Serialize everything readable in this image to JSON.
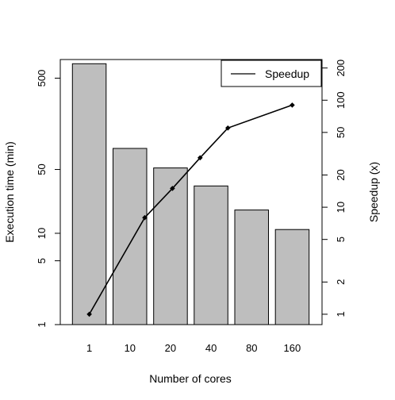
{
  "chart_data": {
    "type": "bar",
    "title": "",
    "xlabel": "Number of cores",
    "categories": [
      "1",
      "10",
      "20",
      "40",
      "80",
      "160"
    ],
    "bars": {
      "name": "Execution time (min)",
      "values": [
        720,
        85,
        52,
        33,
        18,
        11
      ],
      "color": "#bebebe",
      "stroke": "#000000",
      "axis": "left",
      "scale": "log",
      "ylabel": "Execution time (min)",
      "ylim": [
        1,
        800
      ],
      "ticks": [
        1,
        5,
        10,
        50,
        500
      ]
    },
    "line": {
      "name": "Speedup",
      "x": [
        1,
        4,
        8,
        16,
        32,
        160
      ],
      "y": [
        1,
        8,
        15,
        29,
        55,
        90
      ],
      "color": "#000000",
      "marker": "diamond",
      "axis": "right",
      "scale": "log",
      "ylabel": "Speedup (x)",
      "ylim": [
        0.8,
        240
      ],
      "ticks": [
        1,
        2,
        5,
        10,
        20,
        50,
        100,
        200
      ]
    },
    "legend": {
      "position": "top-right",
      "entries": [
        "Speedup"
      ]
    },
    "grid": false
  }
}
